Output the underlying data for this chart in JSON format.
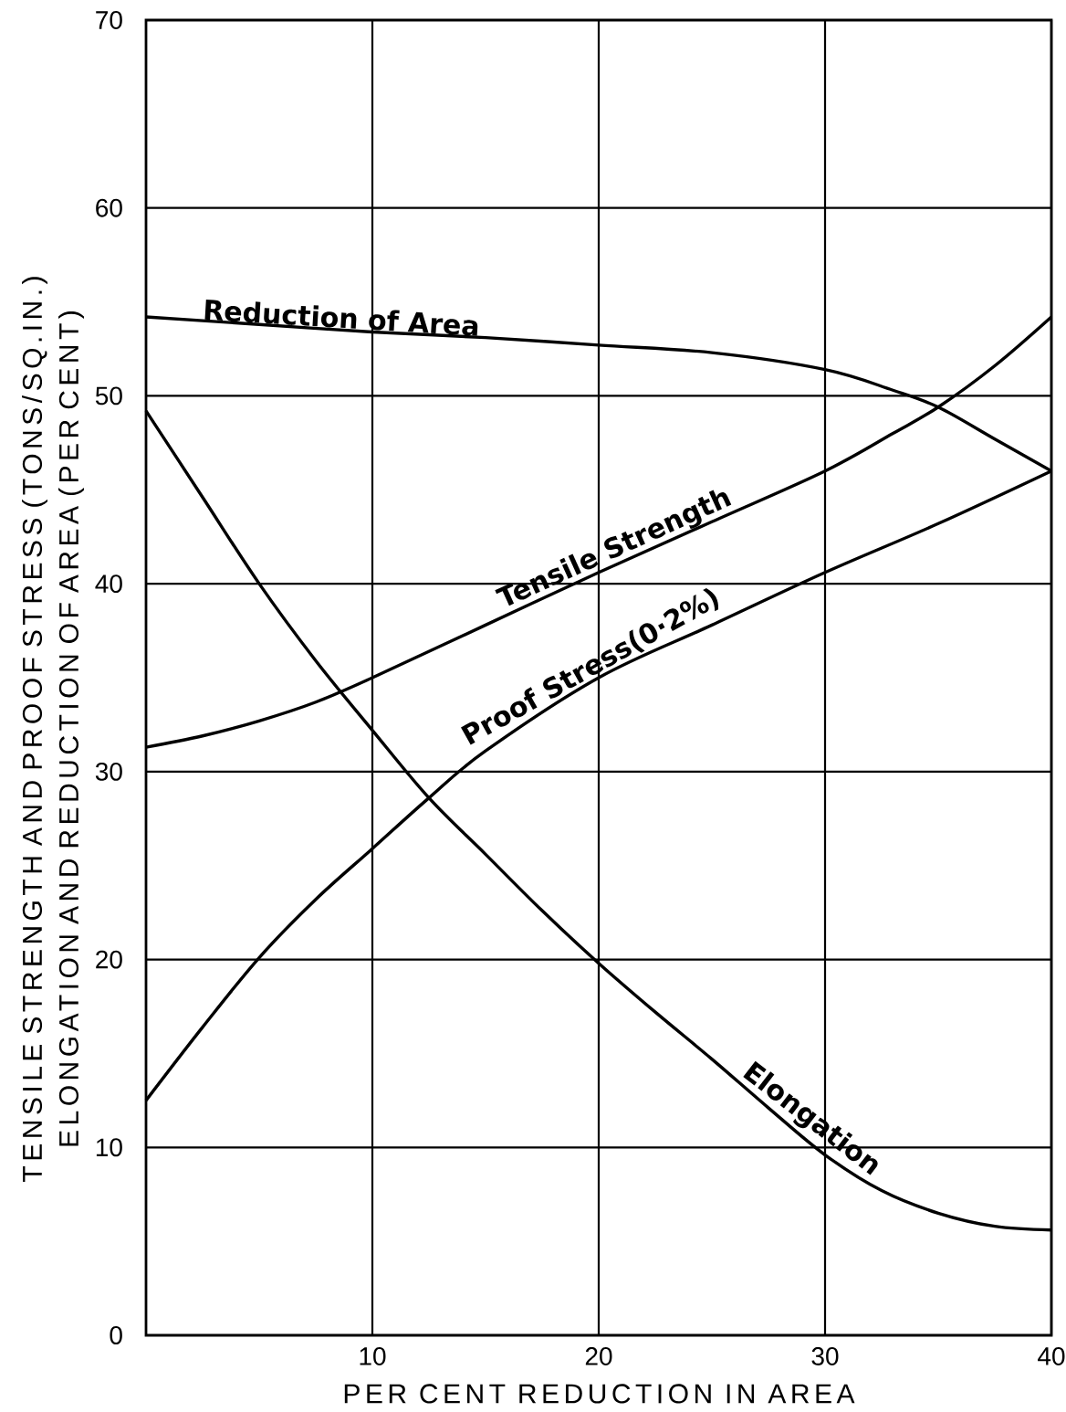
{
  "chart_data": {
    "type": "line",
    "xlabel": "PER CENT REDUCTION IN AREA",
    "ylabel": "TENSILE STRENGTH AND PROOF STRESS (TONS/SQ.IN.) ELONGATION AND REDUCTION OF AREA (PER CENT)",
    "xlim": [
      0,
      40
    ],
    "ylim": [
      0,
      70
    ],
    "xticks": [
      10,
      20,
      30,
      40
    ],
    "yticks": [
      0,
      10,
      20,
      30,
      40,
      50,
      60,
      70
    ],
    "grid": true,
    "marker": "none",
    "line_style": "solid",
    "series": [
      {
        "name": "Reduction of Area",
        "color": "#000000",
        "x": [
          0,
          5,
          10,
          15,
          20,
          25,
          30,
          33,
          35,
          37.5,
          40
        ],
        "values": [
          54.2,
          53.8,
          53.4,
          53.1,
          52.7,
          52.3,
          51.4,
          50.3,
          49.4,
          47.7,
          46.0
        ]
      },
      {
        "name": "Tensile Strength",
        "color": "#000000",
        "x": [
          0,
          2.5,
          5,
          7.5,
          10,
          15,
          20,
          25,
          30,
          33,
          35,
          37.5,
          40
        ],
        "values": [
          31.3,
          31.9,
          32.7,
          33.7,
          35.0,
          37.8,
          40.6,
          43.3,
          46.0,
          48.0,
          49.4,
          51.6,
          54.2
        ]
      },
      {
        "name": "Proof Stress(0·2%)",
        "color": "#000000",
        "x": [
          0,
          2.5,
          5,
          7.5,
          10,
          12.5,
          15,
          20,
          25,
          30,
          35,
          40
        ],
        "values": [
          12.5,
          16.4,
          20.1,
          23.2,
          25.9,
          28.6,
          31.1,
          35.0,
          37.8,
          40.6,
          43.2,
          46.0
        ]
      },
      {
        "name": "Elongation",
        "color": "#000000",
        "x": [
          0,
          2.5,
          5,
          7.5,
          10,
          12.5,
          15,
          17.5,
          20,
          22.5,
          25,
          27.5,
          30,
          32.5,
          35,
          37.5,
          40
        ],
        "values": [
          49.2,
          44.6,
          40.0,
          35.9,
          32.2,
          28.6,
          25.6,
          22.6,
          19.8,
          17.2,
          14.7,
          12.1,
          9.6,
          7.7,
          6.5,
          5.8,
          5.6
        ]
      }
    ]
  }
}
